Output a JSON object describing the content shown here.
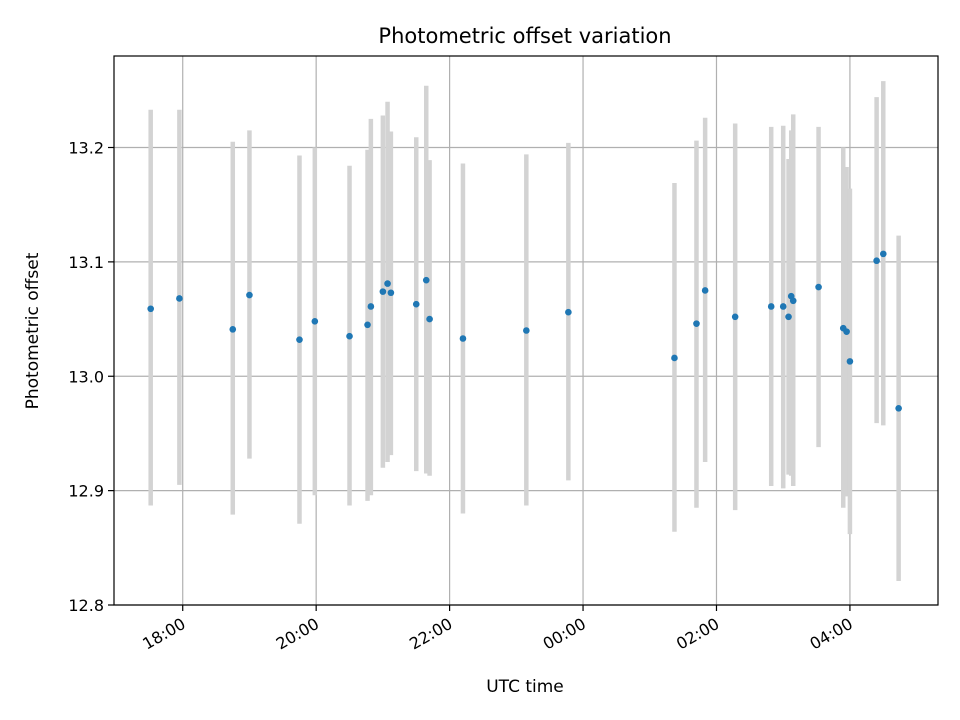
{
  "chart_data": {
    "type": "scatter",
    "title": "Photometric offset variation",
    "xlabel": "UTC time",
    "ylabel": "Photometric offset",
    "x_unit": "hours (UTC clock, 24+ = next day)",
    "xlim": [
      16.97,
      29.32
    ],
    "ylim": [
      12.8,
      13.28
    ],
    "grid": true,
    "x_ticks": [
      {
        "value": 18,
        "label": "18:00"
      },
      {
        "value": 20,
        "label": "20:00"
      },
      {
        "value": 22,
        "label": "22:00"
      },
      {
        "value": 24,
        "label": "00:00"
      },
      {
        "value": 26,
        "label": "02:00"
      },
      {
        "value": 28,
        "label": "04:00"
      }
    ],
    "y_ticks": [
      {
        "value": 12.8,
        "label": "12.8"
      },
      {
        "value": 12.9,
        "label": "12.9"
      },
      {
        "value": 13.0,
        "label": "13.0"
      },
      {
        "value": 13.1,
        "label": "13.1"
      },
      {
        "value": 13.2,
        "label": "13.2"
      }
    ],
    "colors": {
      "points": "#1f77b4",
      "errorbars": "#d3d3d3",
      "grid": "#b0b0b0"
    },
    "series": [
      {
        "points": [
          {
            "x": 17.52,
            "y": 13.059,
            "lo": 12.887,
            "hi": 13.233
          },
          {
            "x": 17.95,
            "y": 13.068,
            "lo": 12.905,
            "hi": 13.233
          },
          {
            "x": 18.75,
            "y": 13.041,
            "lo": 12.879,
            "hi": 13.205
          },
          {
            "x": 19.0,
            "y": 13.071,
            "lo": 12.928,
            "hi": 13.215
          },
          {
            "x": 19.75,
            "y": 13.032,
            "lo": 12.871,
            "hi": 13.193
          },
          {
            "x": 19.98,
            "y": 13.048,
            "lo": 12.896,
            "hi": 13.2
          },
          {
            "x": 20.5,
            "y": 13.035,
            "lo": 12.887,
            "hi": 13.184
          },
          {
            "x": 20.77,
            "y": 13.045,
            "lo": 12.891,
            "hi": 13.198
          },
          {
            "x": 20.82,
            "y": 13.061,
            "lo": 12.896,
            "hi": 13.225
          },
          {
            "x": 21.0,
            "y": 13.074,
            "lo": 12.92,
            "hi": 13.228
          },
          {
            "x": 21.07,
            "y": 13.081,
            "lo": 12.925,
            "hi": 13.24
          },
          {
            "x": 21.12,
            "y": 13.073,
            "lo": 12.931,
            "hi": 13.214
          },
          {
            "x": 21.5,
            "y": 13.063,
            "lo": 12.917,
            "hi": 13.209
          },
          {
            "x": 21.65,
            "y": 13.084,
            "lo": 12.915,
            "hi": 13.254
          },
          {
            "x": 21.7,
            "y": 13.05,
            "lo": 12.913,
            "hi": 13.189
          },
          {
            "x": 22.2,
            "y": 13.033,
            "lo": 12.88,
            "hi": 13.186
          },
          {
            "x": 23.15,
            "y": 13.04,
            "lo": 12.887,
            "hi": 13.194
          },
          {
            "x": 23.78,
            "y": 13.056,
            "lo": 12.909,
            "hi": 13.204
          },
          {
            "x": 25.37,
            "y": 13.016,
            "lo": 12.864,
            "hi": 13.169
          },
          {
            "x": 25.7,
            "y": 13.046,
            "lo": 12.885,
            "hi": 13.206
          },
          {
            "x": 25.83,
            "y": 13.075,
            "lo": 12.925,
            "hi": 13.226
          },
          {
            "x": 26.28,
            "y": 13.052,
            "lo": 12.883,
            "hi": 13.221
          },
          {
            "x": 26.82,
            "y": 13.061,
            "lo": 12.904,
            "hi": 13.218
          },
          {
            "x": 27.0,
            "y": 13.061,
            "lo": 12.902,
            "hi": 13.219
          },
          {
            "x": 27.08,
            "y": 13.052,
            "lo": 12.914,
            "hi": 13.19
          },
          {
            "x": 27.12,
            "y": 13.07,
            "lo": 12.913,
            "hi": 13.215
          },
          {
            "x": 27.15,
            "y": 13.066,
            "lo": 12.904,
            "hi": 13.229
          },
          {
            "x": 27.53,
            "y": 13.078,
            "lo": 12.938,
            "hi": 13.218
          },
          {
            "x": 27.9,
            "y": 13.042,
            "lo": 12.885,
            "hi": 13.2
          },
          {
            "x": 27.95,
            "y": 13.039,
            "lo": 12.895,
            "hi": 13.183
          },
          {
            "x": 28.0,
            "y": 13.013,
            "lo": 12.862,
            "hi": 13.164
          },
          {
            "x": 28.4,
            "y": 13.101,
            "lo": 12.959,
            "hi": 13.244
          },
          {
            "x": 28.5,
            "y": 13.107,
            "lo": 12.957,
            "hi": 13.258
          },
          {
            "x": 28.73,
            "y": 12.972,
            "lo": 12.821,
            "hi": 13.123
          }
        ]
      }
    ]
  }
}
